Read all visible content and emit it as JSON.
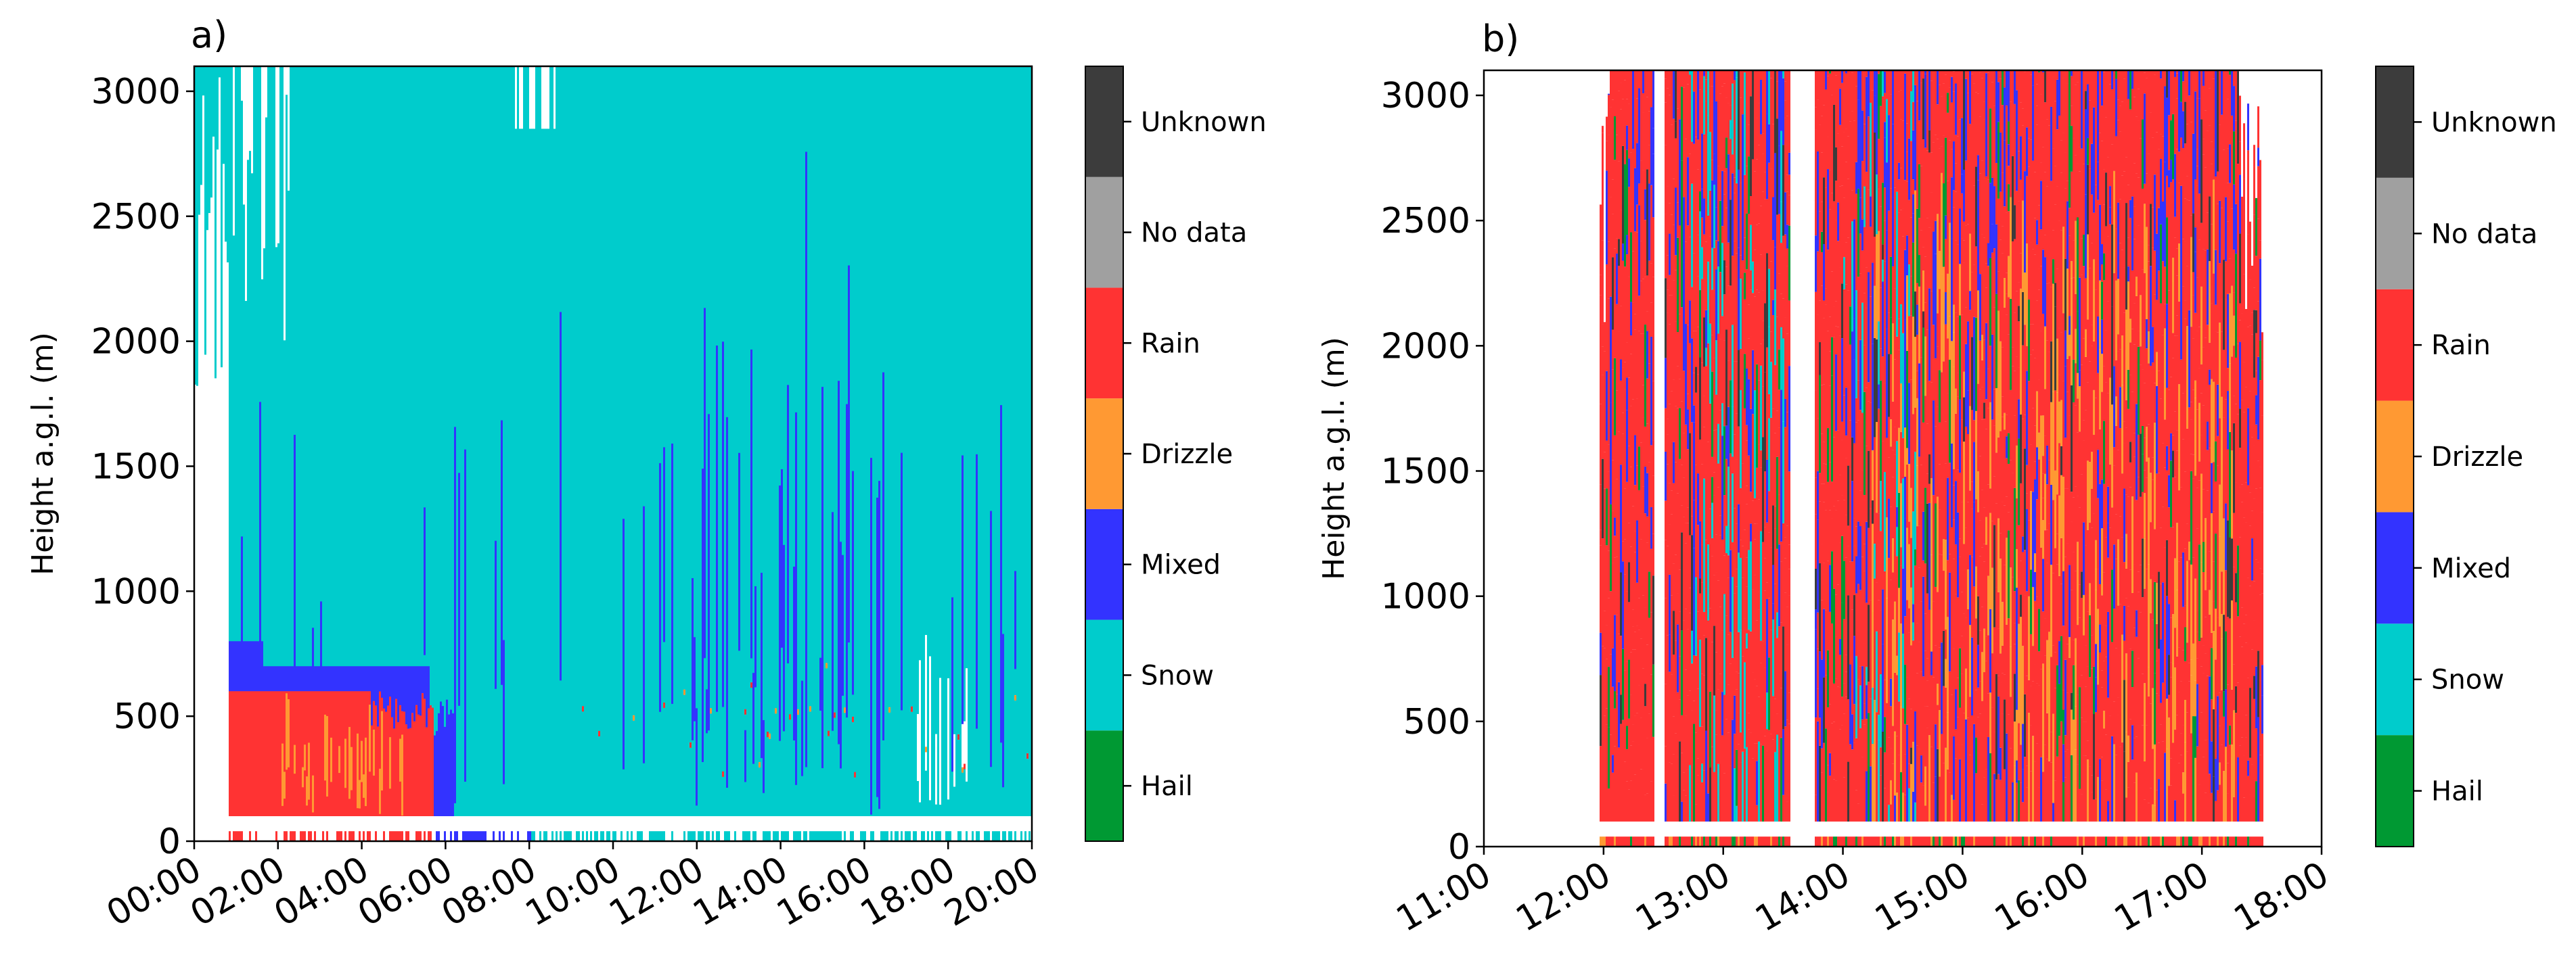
{
  "colors": {
    "hail": "#009933",
    "snow": "#00cccc",
    "mixed": "#3333ff",
    "drizzle": "#ff9933",
    "rain": "#ff3333",
    "no_data": "#a0a0a0",
    "unknown": "#3c3c3c"
  },
  "chart_data": [
    {
      "type": "heatmap",
      "panel_label": "a)",
      "title": "",
      "ylabel": "Height a.g.l. (m)",
      "xlabel": "",
      "x_ticks": [
        "00:00",
        "02:00",
        "04:00",
        "06:00",
        "08:00",
        "10:00",
        "12:00",
        "14:00",
        "16:00",
        "18:00",
        "20:00"
      ],
      "x_range_hours": [
        0,
        20
      ],
      "y_ticks": [
        "0",
        "500",
        "1000",
        "1500",
        "2000",
        "2500",
        "3000"
      ],
      "ylim": [
        0,
        3100
      ],
      "colorbar": [
        "Hail",
        "Snow",
        "Mixed",
        "Drizzle",
        "Rain",
        "No data",
        "Unknown"
      ],
      "regions": [
        {
          "category": "Snow",
          "x": [
            0.8,
            20
          ],
          "y": [
            100,
            3100
          ]
        },
        {
          "category": "Mixed",
          "x": [
            0.8,
            6.2
          ],
          "y": [
            300,
            800
          ]
        },
        {
          "category": "Rain",
          "x": [
            0.8,
            5.6
          ],
          "y": [
            100,
            600
          ]
        },
        {
          "category": "Drizzle",
          "x": [
            2.0,
            5.0
          ],
          "y": [
            150,
            500
          ]
        },
        {
          "category": "Mixed",
          "x": [
            11.2,
            16.5
          ],
          "y": [
            150,
            900
          ]
        }
      ]
    },
    {
      "type": "heatmap",
      "panel_label": "b)",
      "title": "",
      "ylabel": "Height a.g.l. (m)",
      "xlabel": "",
      "x_ticks": [
        "11:00",
        "12:00",
        "13:00",
        "14:00",
        "15:00",
        "16:00",
        "17:00",
        "18:00"
      ],
      "x_range_hours": [
        11,
        18
      ],
      "y_ticks": [
        "0",
        "500",
        "1000",
        "1500",
        "2000",
        "2500",
        "3000"
      ],
      "ylim": [
        0,
        3100
      ],
      "colorbar": [
        "Hail",
        "Snow",
        "Mixed",
        "Drizzle",
        "Rain",
        "No data",
        "Unknown"
      ],
      "regions": [
        {
          "category": "Rain",
          "x": [
            11.95,
            12.4
          ],
          "y": [
            100,
            3100
          ]
        },
        {
          "category": "Rain",
          "x": [
            12.5,
            13.55
          ],
          "y": [
            100,
            3100
          ]
        },
        {
          "category": "Rain",
          "x": [
            13.75,
            17.5
          ],
          "y": [
            100,
            3100
          ]
        },
        {
          "category": "Drizzle",
          "x": [
            14.3,
            17.2
          ],
          "y": [
            100,
            2200
          ]
        },
        {
          "category": "Snow",
          "x": [
            12.8,
            13.4
          ],
          "y": [
            900,
            2500
          ]
        },
        {
          "category": "Mixed",
          "x": [
            13.8,
            17.3
          ],
          "y": [
            2400,
            3100
          ]
        }
      ]
    }
  ]
}
